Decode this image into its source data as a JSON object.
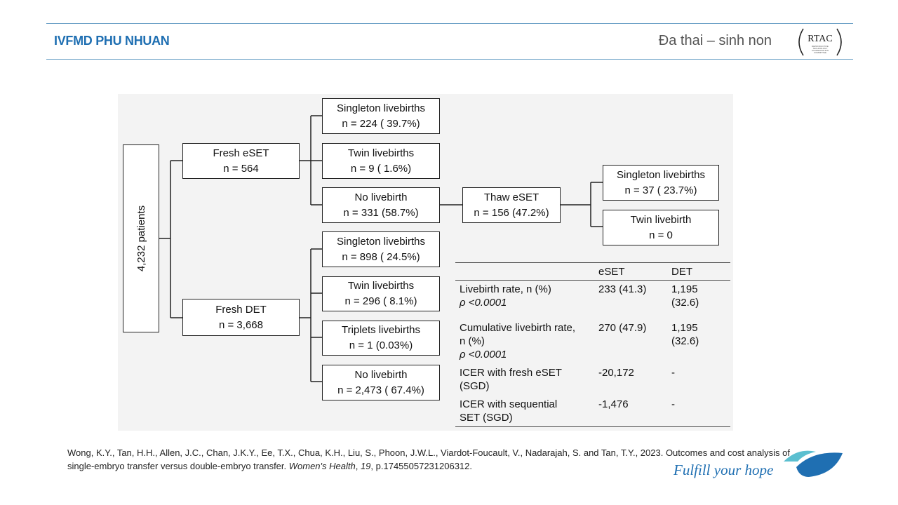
{
  "header": {
    "brand": "IVFMD PHU NHUAN",
    "title": "Đa thai – sinh non",
    "logo_text": "RTAC",
    "logo_subtext": "REPRODUCTIVE TECHNOLOGY ACCREDITATION COMMITTEE"
  },
  "flow": {
    "root": "4,232 patients",
    "fresh_eset": {
      "line1": "Fresh eSET",
      "line2": "n = 564"
    },
    "fresh_det": {
      "line1": "Fresh DET",
      "line2": "n = 3,668"
    },
    "eset_outcomes": [
      {
        "line1": "Singleton livebirths",
        "line2": "n = 224 ( 39.7%)"
      },
      {
        "line1": "Twin livebirths",
        "line2": "n = 9 ( 1.6%)"
      },
      {
        "line1": "No livebirth",
        "line2": "n = 331 (58.7%)"
      }
    ],
    "thaw_eset": {
      "line1": "Thaw eSET",
      "line2": "n = 156  (47.2%)"
    },
    "thaw_outcomes": [
      {
        "line1": "Singleton livebirths",
        "line2": "n = 37 ( 23.7%)"
      },
      {
        "line1": "Twin livebirth",
        "line2": "n = 0"
      }
    ],
    "det_outcomes": [
      {
        "line1": "Singleton livebirths",
        "line2": "n = 898 ( 24.5%)"
      },
      {
        "line1": "Twin livebirths",
        "line2": "n = 296 ( 8.1%)"
      },
      {
        "line1": "Triplets livebirths",
        "line2": "n = 1 (0.03%)"
      },
      {
        "line1": "No livebirth",
        "line2": "n = 2,473 ( 67.4%)"
      }
    ]
  },
  "table": {
    "headers": [
      "",
      "eSET",
      "DET"
    ],
    "rows": [
      {
        "label": "Livebirth rate, n (%)",
        "p": "ρ <0.0001",
        "eset": "233 (41.3)",
        "det": "1,195 (32.6)"
      },
      {
        "label": "Cumulative livebirth rate,\nn (%)",
        "p": "ρ <0.0001",
        "eset": "270 (47.9)",
        "det": "1,195 (32.6)"
      },
      {
        "label": "ICER with fresh eSET\n(SGD)",
        "p": "",
        "eset": "-20,172",
        "det": "-"
      },
      {
        "label": "ICER with sequential\nSET (SGD)",
        "p": "",
        "eset": "-1,476",
        "det": "-"
      }
    ]
  },
  "footer": {
    "citation_pre": "Wong, K.Y., Tan, H.H., Allen, J.C., Chan, J.K.Y., Ee, T.X., Chua, K.H., Liu, S., Phoon, J.W.L., Viardot-Foucault, V., Nadarajah, S. and Tan, T.Y., 2023. Outcomes and cost analysis of single-embryo transfer versus double-embryo transfer. ",
    "citation_journal": "Women's Health",
    "citation_sep": ", ",
    "citation_volume": "19",
    "citation_post": ", p.17455057231206312.",
    "tagline": "Fulfill your hope"
  },
  "colors": {
    "brand": "#1f6fb2",
    "rule": "#6fa3c8",
    "swirl_light": "#5bbfd0",
    "swirl_dark": "#1f6fb2"
  }
}
